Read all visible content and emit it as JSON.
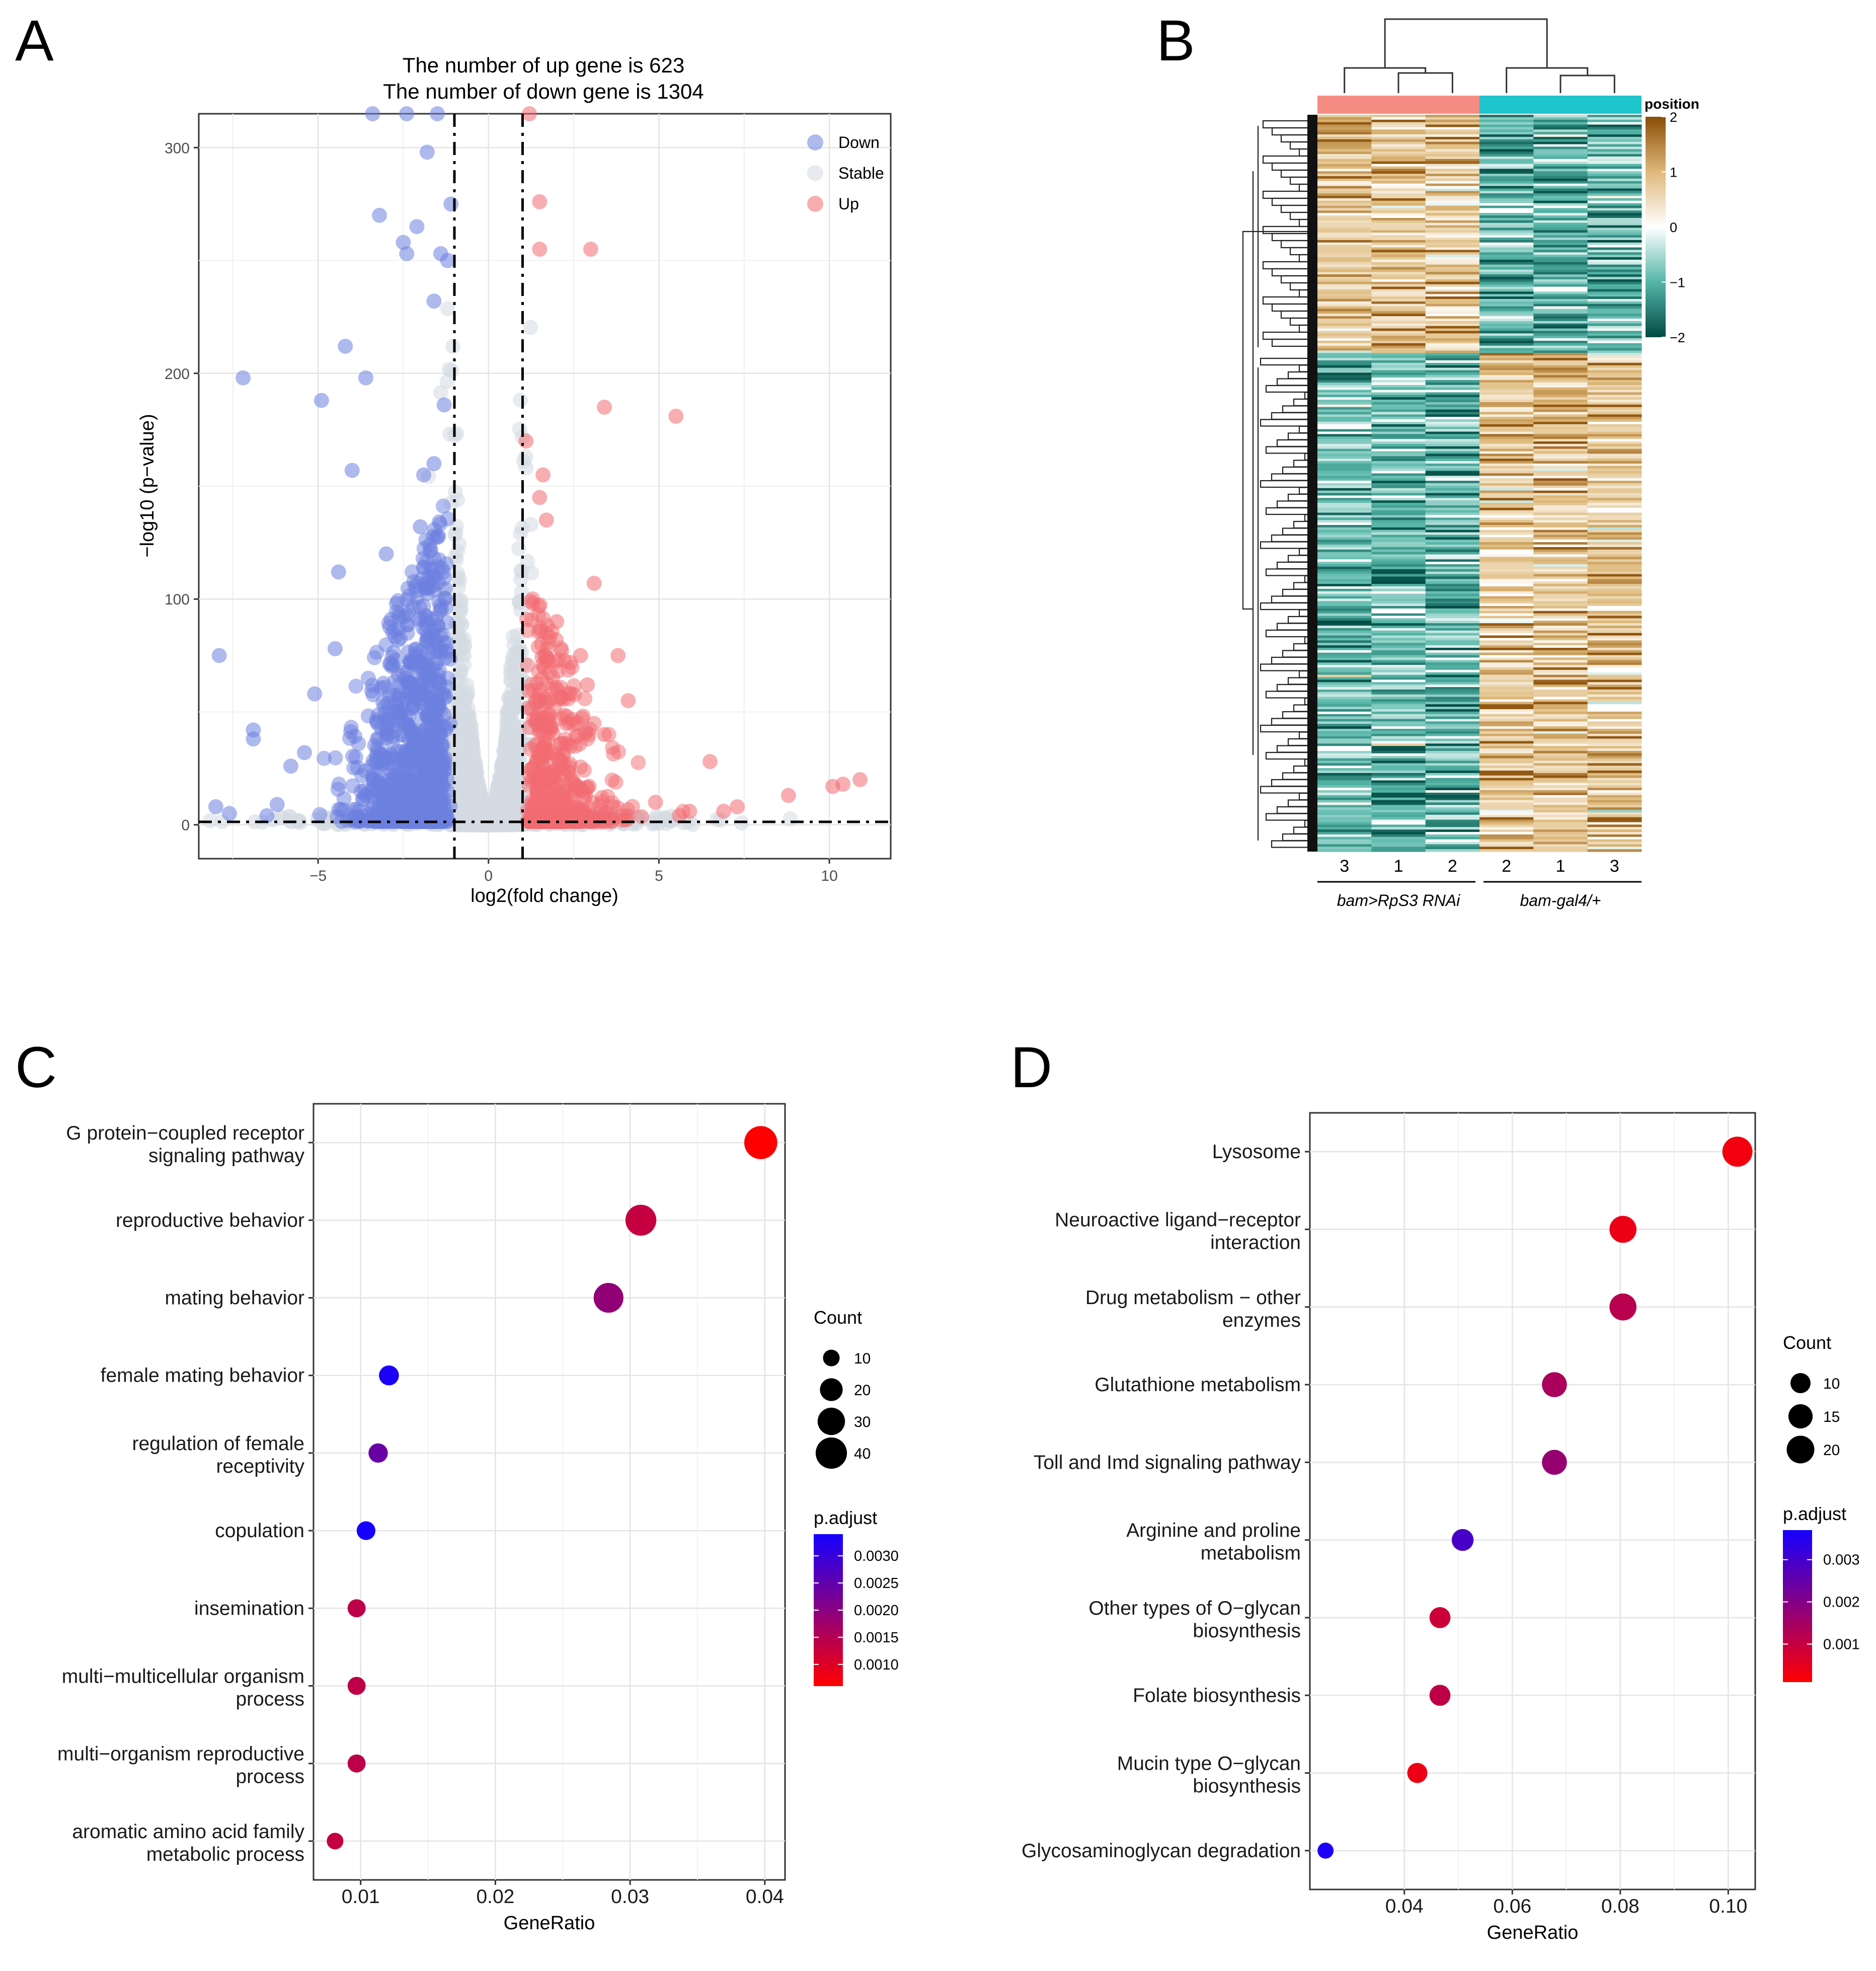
{
  "panels": {
    "A": "A",
    "B": "B",
    "C": "C",
    "D": "D"
  },
  "chart_data": [
    {
      "id": "A",
      "type": "scatter",
      "title": [
        "The number of up gene is 623",
        "The number of down gene is 1304"
      ],
      "xlabel": "log2(fold change)",
      "ylabel": "−log10 (p−value)",
      "xlim": [
        -8.5,
        11.8
      ],
      "ylim": [
        -15,
        315
      ],
      "xticks": [
        -5,
        0,
        5,
        10
      ],
      "yticks": [
        0,
        100,
        200,
        300
      ],
      "thresholds": {
        "x": [
          -1,
          1
        ],
        "y": 1.3
      },
      "legend": [
        {
          "name": "Down",
          "color": "#6b7fe0"
        },
        {
          "name": "Stable",
          "color": "#d3dbe2"
        },
        {
          "name": "Up",
          "color": "#f26b71"
        }
      ],
      "notable_points": {
        "down": [
          [
            -7.9,
            75
          ],
          [
            -7.2,
            198
          ],
          [
            -6.9,
            42
          ],
          [
            -6.9,
            38
          ],
          [
            -4.9,
            188
          ],
          [
            -4.2,
            212
          ],
          [
            -4.0,
            157
          ],
          [
            -3.6,
            198
          ],
          [
            -3.2,
            270
          ],
          [
            -2.5,
            258
          ],
          [
            -2.4,
            253
          ],
          [
            -1.6,
            232
          ],
          [
            -1.3,
            186
          ],
          [
            -1.6,
            160
          ],
          [
            -1.9,
            155
          ],
          [
            -2.0,
            132
          ],
          [
            -4.4,
            112
          ],
          [
            -5.1,
            58
          ],
          [
            -5.4,
            32
          ],
          [
            -5.8,
            26
          ],
          [
            -6.2,
            9
          ],
          [
            -6.5,
            4
          ],
          [
            -7.6,
            5
          ],
          [
            -8.0,
            8
          ],
          [
            -3.0,
            120
          ],
          [
            -2.7,
            98
          ],
          [
            -1.2,
            250
          ],
          [
            -1.4,
            253
          ],
          [
            -1.1,
            275
          ],
          [
            -1.8,
            298
          ],
          [
            -2.1,
            265
          ],
          [
            -2.4,
            315
          ],
          [
            -1.5,
            315
          ],
          [
            -3.4,
            315
          ],
          [
            -4.5,
            78
          ]
        ],
        "up": [
          [
            1.2,
            315
          ],
          [
            1.5,
            276
          ],
          [
            1.5,
            255
          ],
          [
            3.0,
            255
          ],
          [
            3.4,
            185
          ],
          [
            5.5,
            181
          ],
          [
            1.1,
            170
          ],
          [
            1.6,
            155
          ],
          [
            1.7,
            135
          ],
          [
            3.1,
            107
          ],
          [
            2.7,
            75
          ],
          [
            3.8,
            75
          ],
          [
            2.3,
            48
          ],
          [
            4.1,
            55
          ],
          [
            2.9,
            62
          ],
          [
            3.4,
            40
          ],
          [
            6.5,
            28
          ],
          [
            8.8,
            13
          ],
          [
            10.1,
            17
          ],
          [
            10.4,
            18
          ],
          [
            10.9,
            20
          ],
          [
            7.3,
            8
          ],
          [
            6.9,
            6
          ],
          [
            5.9,
            6
          ],
          [
            5.6,
            4
          ],
          [
            4.9,
            10
          ],
          [
            1.5,
            145
          ],
          [
            1.3,
            98
          ],
          [
            2.0,
            90
          ]
        ]
      }
    },
    {
      "id": "B",
      "type": "heatmap",
      "legend_title": "position",
      "legend_ticks": [
        2,
        1,
        0,
        -1,
        -2
      ],
      "columns": [
        "3",
        "1",
        "2",
        "2",
        "1",
        "3"
      ],
      "groups": [
        "bam>RpS3 RNAi",
        "bam-gal4/+"
      ],
      "group_colors": [
        "#f58c84",
        "#1fc5cc"
      ],
      "scale_colors": [
        "#004a44",
        "#55b6a8",
        "#ffffff",
        "#deb97a",
        "#8a4d06"
      ]
    },
    {
      "id": "C",
      "type": "scatter",
      "xlabel": "GeneRatio",
      "xlim": [
        0.0065,
        0.0415
      ],
      "xticks": [
        0.01,
        0.02,
        0.03,
        0.04
      ],
      "xtick_labels": [
        "0.01",
        "0.02",
        "0.03",
        "0.04"
      ],
      "categories": [
        [
          "G protein−coupled receptor",
          "signaling pathway"
        ],
        [
          "reproductive behavior"
        ],
        [
          "mating behavior"
        ],
        [
          "female mating behavior"
        ],
        [
          "regulation of female",
          "receptivity"
        ],
        [
          "copulation"
        ],
        [
          "insemination"
        ],
        [
          "multi−multicellular organism",
          "process"
        ],
        [
          "multi−organism reproductive",
          "process"
        ],
        [
          "aromatic amino acid family",
          "metabolic process"
        ]
      ],
      "x": [
        0.0397,
        0.0308,
        0.0284,
        0.0121,
        0.0113,
        0.0104,
        0.0097,
        0.0097,
        0.0097,
        0.0081
      ],
      "count": [
        45,
        39,
        36,
        15,
        14,
        13,
        12,
        12,
        12,
        10
      ],
      "padjust": [
        0.0006,
        0.0013,
        0.0019,
        0.0033,
        0.0024,
        0.0034,
        0.0014,
        0.0014,
        0.0014,
        0.0013
      ],
      "size_legend": {
        "title": "Count",
        "values": [
          10,
          20,
          30,
          40
        ]
      },
      "color_legend": {
        "title": "p.adjust",
        "ticks": [
          0.003,
          0.0025,
          0.002,
          0.0015,
          0.001
        ],
        "tick_labels": [
          "0.0030",
          "0.0025",
          "0.0020",
          "0.0015",
          "0.0010"
        ],
        "range": [
          0.0006,
          0.0034
        ],
        "low_color": "#ff0000",
        "high_color": "#1500ff"
      }
    },
    {
      "id": "D",
      "type": "scatter",
      "xlabel": "GeneRatio",
      "xlim": [
        0.0225,
        0.105
      ],
      "xticks": [
        0.04,
        0.06,
        0.08,
        0.1
      ],
      "xtick_labels": [
        "0.04",
        "0.06",
        "0.08",
        "0.10"
      ],
      "categories": [
        [
          "Lysosome"
        ],
        [
          "Neuroactive ligand−receptor",
          "interaction"
        ],
        [
          "Drug metabolism − other",
          "enzymes"
        ],
        [
          "Glutathione metabolism"
        ],
        [
          "Toll and Imd signaling pathway"
        ],
        [
          "Arginine and proline",
          "metabolism"
        ],
        [
          "Other types of O−glycan",
          "biosynthesis"
        ],
        [
          "Folate biosynthesis"
        ],
        [
          "Mucin type O−glycan",
          "biosynthesis"
        ],
        [
          "Glycosaminoglycan degradation"
        ]
      ],
      "x": [
        0.1017,
        0.0805,
        0.0805,
        0.0678,
        0.0678,
        0.0508,
        0.0466,
        0.0466,
        0.0424,
        0.0254
      ],
      "count": [
        24,
        19,
        19,
        16,
        16,
        12,
        11,
        11,
        10,
        6
      ],
      "padjust": [
        0.0003,
        0.0004,
        0.0012,
        0.0014,
        0.0017,
        0.0029,
        0.0009,
        0.0011,
        0.0004,
        0.0036
      ],
      "size_legend": {
        "title": "Count",
        "values": [
          10,
          15,
          20
        ]
      },
      "color_legend": {
        "title": "p.adjust",
        "ticks": [
          0.003,
          0.002,
          0.001
        ],
        "tick_labels": [
          "0.003",
          "0.002",
          "0.001"
        ],
        "range": [
          0.0001,
          0.0037
        ],
        "low_color": "#ff0000",
        "high_color": "#1500ff"
      }
    }
  ]
}
